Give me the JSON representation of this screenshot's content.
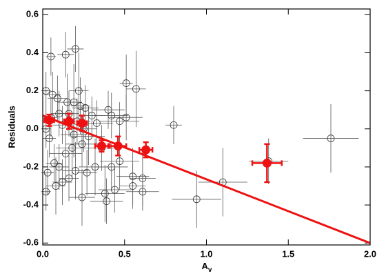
{
  "chart_data": {
    "type": "scatter",
    "x_label": {
      "main": "A",
      "sub": "v"
    },
    "y_label": "Residuals",
    "xlim": [
      0,
      2.0
    ],
    "ylim": [
      -0.61,
      0.63
    ],
    "xticks": [
      {
        "value": 0,
        "label": "0.0"
      },
      0.5,
      {
        "value": 1,
        "label": "1.0"
      },
      1.5,
      {
        "value": 2,
        "label": "2.0"
      }
    ],
    "yticks": [
      -0.6,
      -0.4,
      -0.2,
      {
        "value": 0,
        "label": "0.0"
      },
      0.2,
      0.4,
      0.6
    ],
    "series": [
      {
        "color": "#333333",
        "marker": "open",
        "x": [
          1.76,
          1.1,
          0.94,
          0.8,
          1.38,
          0.57,
          0.51,
          0.51,
          0.47,
          0.4,
          0.42,
          0.55,
          0.55,
          0.61,
          0.61,
          0.47,
          0.42,
          0.38,
          0.39,
          0.2,
          0.14,
          0.05,
          0.02,
          0.06,
          0.09,
          0.15,
          0.19,
          0.22,
          0.23,
          0.26,
          0.3,
          0.33,
          0.28,
          0.24,
          0.18,
          0.14,
          0.1,
          0.07,
          0.03,
          0.02,
          0.08,
          0.12,
          0.16,
          0.2,
          0.24,
          0.27,
          0.32,
          0.19,
          0.12,
          0.1,
          0.05,
          0.02,
          0.04,
          0.16,
          0.21,
          0.25,
          0.36,
          0.44
        ],
        "y": [
          -0.05,
          -0.28,
          -0.37,
          0.02,
          -0.17,
          0.21,
          0.24,
          0.06,
          0.04,
          0.1,
          0.07,
          -0.25,
          -0.3,
          -0.26,
          -0.33,
          -0.17,
          -0.2,
          -0.34,
          -0.38,
          0.42,
          0.39,
          0.38,
          0.2,
          0.18,
          0.16,
          0.14,
          0.14,
          0.2,
          0.12,
          0.11,
          0.07,
          0.03,
          -0.04,
          -0.08,
          -0.1,
          -0.13,
          -0.2,
          -0.18,
          -0.23,
          -0.33,
          -0.3,
          -0.28,
          -0.26,
          -0.22,
          -0.36,
          -0.23,
          -0.2,
          -0.03,
          0.02,
          0.08,
          0.06,
          0.0,
          -0.05,
          0.08,
          0.04,
          0.0,
          -0.1,
          -0.32
        ],
        "xerr": [
          0.17,
          0.15,
          0.15,
          0.05,
          0.12,
          0.06,
          0.04,
          0.1,
          0.12,
          0.1,
          0.1,
          0.1,
          0.08,
          0.08,
          0.1,
          0.12,
          0.1,
          0.12,
          0.1,
          0.05,
          0.05,
          0.03,
          0.03,
          0.05,
          0.06,
          0.06,
          0.05,
          0.06,
          0.06,
          0.08,
          0.08,
          0.1,
          0.1,
          0.1,
          0.1,
          0.1,
          0.06,
          0.05,
          0.04,
          0.03,
          0.06,
          0.06,
          0.06,
          0.08,
          0.08,
          0.06,
          0.1,
          0.08,
          0.06,
          0.05,
          0.04,
          0.03,
          0.04,
          0.06,
          0.08,
          0.08,
          0.08,
          0.1
        ],
        "yerr": [
          0.18,
          0.18,
          0.15,
          0.1,
          0.12,
          0.2,
          0.15,
          0.12,
          0.1,
          0.1,
          0.12,
          0.15,
          0.12,
          0.15,
          0.1,
          0.15,
          0.12,
          0.15,
          0.12,
          0.12,
          0.12,
          0.1,
          0.1,
          0.12,
          0.12,
          0.15,
          0.2,
          0.2,
          0.15,
          0.12,
          0.1,
          0.12,
          0.15,
          0.12,
          0.15,
          0.12,
          0.12,
          0.1,
          0.12,
          0.1,
          0.15,
          0.12,
          0.12,
          0.15,
          0.15,
          0.12,
          0.15,
          0.12,
          0.1,
          0.12,
          0.1,
          0.1,
          0.1,
          0.12,
          0.12,
          0.12,
          0.12,
          0.12
        ]
      },
      {
        "color": "#ee1111",
        "marker": "filled",
        "x": [
          0.04,
          0.16,
          0.24,
          0.36,
          0.46,
          0.63,
          1.37
        ],
        "y": [
          0.045,
          0.04,
          0.03,
          -0.09,
          -0.09,
          -0.11,
          -0.18
        ],
        "xerr": [
          0.03,
          0.03,
          0.03,
          0.04,
          0.05,
          0.04,
          0.09
        ],
        "yerr": [
          0.03,
          0.04,
          0.04,
          0.03,
          0.05,
          0.04,
          0.1
        ]
      }
    ],
    "fit_line": {
      "color": "#ee1111",
      "x": [
        0,
        2.0
      ],
      "y": [
        0.07,
        -0.6
      ]
    }
  }
}
